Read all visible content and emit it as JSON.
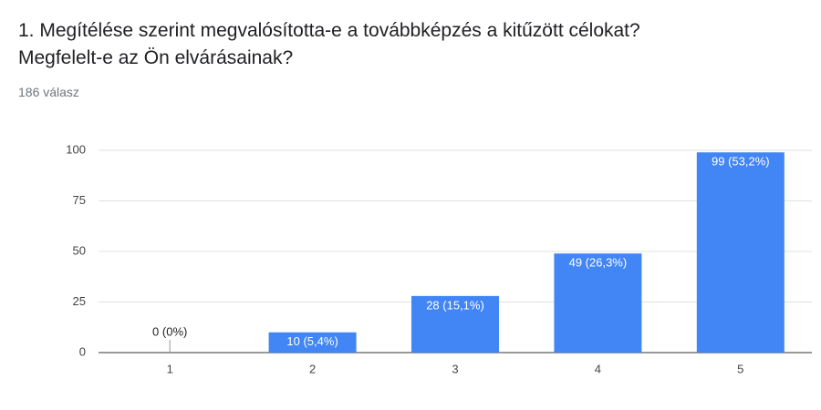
{
  "chart_data": {
    "type": "bar",
    "title": "1. Megítélése szerint megvalósította-e a továbbképzés a kitűzött célokat? Megfelelt-e az Ön elvárásainak?",
    "subtitle": "186 válasz",
    "categories": [
      "1",
      "2",
      "3",
      "4",
      "5"
    ],
    "values": [
      0,
      10,
      28,
      49,
      99
    ],
    "value_labels": [
      "0 (0%)",
      "10 (5,4%)",
      "28 (15,1%)",
      "49 (26,3%)",
      "99 (53,2%)"
    ],
    "color": "#4285f4",
    "ylim": [
      0,
      100
    ],
    "yticks": [
      0,
      25,
      50,
      75,
      100
    ],
    "grid": true
  }
}
